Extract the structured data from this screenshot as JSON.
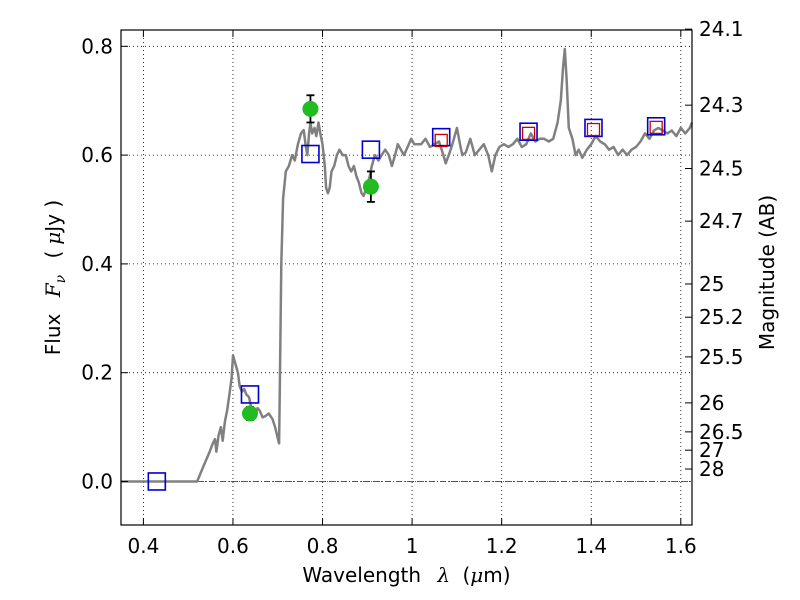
{
  "chart_data": {
    "type": "line",
    "title": "",
    "xlabel": {
      "prefix": "Wavelength",
      "symbol": "λ",
      "unit_open": "(",
      "unit_mu": "μ",
      "unit_rest": "m)"
    },
    "ylabel": {
      "prefix": "Flux",
      "symbol": "F",
      "subscript": "ν",
      "unit_open": "(",
      "unit_mu": "μ",
      "unit_rest": "Jy )"
    },
    "y2label": "Magnitude (AB)",
    "xlim": [
      0.35,
      1.625
    ],
    "ylim": [
      -0.08,
      0.83
    ],
    "grid": true,
    "x_ticks": [
      0.4,
      0.6,
      0.8,
      1.0,
      1.2,
      1.4,
      1.6
    ],
    "x_tick_labels": [
      "0.4",
      "0.6",
      "0.8",
      "1",
      "1.2",
      "1.4",
      "1.6"
    ],
    "y_ticks": [
      0.0,
      0.2,
      0.4,
      0.6,
      0.8
    ],
    "y_tick_labels": [
      "0.0",
      "0.2",
      "0.4",
      "0.6",
      "0.8"
    ],
    "mag_ticks": [
      {
        "label": "24.1",
        "flux": 0.8316
      },
      {
        "label": "24.3",
        "flux": 0.6918
      },
      {
        "label": "24.5",
        "flux": 0.5754
      },
      {
        "label": "24.7",
        "flux": 0.4786
      },
      {
        "label": "25",
        "flux": 0.3631
      },
      {
        "label": "25.2",
        "flux": 0.302
      },
      {
        "label": "25.5",
        "flux": 0.2291
      },
      {
        "label": "26",
        "flux": 0.1445
      },
      {
        "label": "26.5",
        "flux": 0.0912
      },
      {
        "label": "27",
        "flux": 0.0575
      },
      {
        "label": "28",
        "flux": 0.0229
      }
    ],
    "series": [
      {
        "type": "line",
        "color": "#808080",
        "points": [
          [
            0.35,
            0.0
          ],
          [
            0.52,
            0.0
          ],
          [
            0.535,
            0.03
          ],
          [
            0.548,
            0.055
          ],
          [
            0.555,
            0.07
          ],
          [
            0.56,
            0.078
          ],
          [
            0.563,
            0.055
          ],
          [
            0.568,
            0.085
          ],
          [
            0.573,
            0.1
          ],
          [
            0.577,
            0.075
          ],
          [
            0.582,
            0.11
          ],
          [
            0.587,
            0.13
          ],
          [
            0.592,
            0.16
          ],
          [
            0.597,
            0.19
          ],
          [
            0.6,
            0.232
          ],
          [
            0.606,
            0.215
          ],
          [
            0.611,
            0.2
          ],
          [
            0.615,
            0.175
          ],
          [
            0.62,
            0.165
          ],
          [
            0.625,
            0.17
          ],
          [
            0.63,
            0.16
          ],
          [
            0.636,
            0.155
          ],
          [
            0.642,
            0.13
          ],
          [
            0.648,
            0.12
          ],
          [
            0.655,
            0.135
          ],
          [
            0.66,
            0.13
          ],
          [
            0.666,
            0.118
          ],
          [
            0.672,
            0.12
          ],
          [
            0.68,
            0.125
          ],
          [
            0.688,
            0.115
          ],
          [
            0.694,
            0.1
          ],
          [
            0.7,
            0.08
          ],
          [
            0.703,
            0.07
          ],
          [
            0.705,
            0.2
          ],
          [
            0.708,
            0.4
          ],
          [
            0.712,
            0.52
          ],
          [
            0.718,
            0.57
          ],
          [
            0.725,
            0.58
          ],
          [
            0.732,
            0.6
          ],
          [
            0.738,
            0.59
          ],
          [
            0.745,
            0.62
          ],
          [
            0.752,
            0.64
          ],
          [
            0.758,
            0.646
          ],
          [
            0.762,
            0.62
          ],
          [
            0.766,
            0.6
          ],
          [
            0.77,
            0.64
          ],
          [
            0.773,
            0.66
          ],
          [
            0.777,
            0.64
          ],
          [
            0.782,
            0.65
          ],
          [
            0.786,
            0.635
          ],
          [
            0.791,
            0.66
          ],
          [
            0.795,
            0.64
          ],
          [
            0.8,
            0.62
          ],
          [
            0.805,
            0.58
          ],
          [
            0.808,
            0.54
          ],
          [
            0.812,
            0.53
          ],
          [
            0.816,
            0.54
          ],
          [
            0.82,
            0.57
          ],
          [
            0.826,
            0.58
          ],
          [
            0.832,
            0.6
          ],
          [
            0.838,
            0.61
          ],
          [
            0.845,
            0.6
          ],
          [
            0.852,
            0.6
          ],
          [
            0.858,
            0.58
          ],
          [
            0.864,
            0.57
          ],
          [
            0.87,
            0.58
          ],
          [
            0.876,
            0.56
          ],
          [
            0.881,
            0.55
          ],
          [
            0.887,
            0.53
          ],
          [
            0.892,
            0.525
          ],
          [
            0.898,
            0.54
          ],
          [
            0.905,
            0.56
          ],
          [
            0.91,
            0.58
          ],
          [
            0.917,
            0.6
          ],
          [
            0.925,
            0.59
          ],
          [
            0.932,
            0.6
          ],
          [
            0.94,
            0.61
          ],
          [
            0.948,
            0.6
          ],
          [
            0.955,
            0.58
          ],
          [
            0.962,
            0.6
          ],
          [
            0.968,
            0.62
          ],
          [
            0.975,
            0.61
          ],
          [
            0.982,
            0.6
          ],
          [
            0.99,
            0.615
          ],
          [
            0.998,
            0.63
          ],
          [
            1.005,
            0.62
          ],
          [
            1.012,
            0.62
          ],
          [
            1.02,
            0.62
          ],
          [
            1.03,
            0.63
          ],
          [
            1.04,
            0.615
          ],
          [
            1.05,
            0.62
          ],
          [
            1.06,
            0.625
          ],
          [
            1.07,
            0.6
          ],
          [
            1.075,
            0.585
          ],
          [
            1.082,
            0.6
          ],
          [
            1.09,
            0.62
          ],
          [
            1.1,
            0.65
          ],
          [
            1.107,
            0.62
          ],
          [
            1.112,
            0.6
          ],
          [
            1.12,
            0.605
          ],
          [
            1.13,
            0.63
          ],
          [
            1.14,
            0.6
          ],
          [
            1.15,
            0.61
          ],
          [
            1.16,
            0.62
          ],
          [
            1.17,
            0.6
          ],
          [
            1.178,
            0.57
          ],
          [
            1.186,
            0.6
          ],
          [
            1.195,
            0.615
          ],
          [
            1.205,
            0.62
          ],
          [
            1.215,
            0.615
          ],
          [
            1.225,
            0.62
          ],
          [
            1.235,
            0.63
          ],
          [
            1.245,
            0.615
          ],
          [
            1.255,
            0.62
          ],
          [
            1.265,
            0.64
          ],
          [
            1.275,
            0.625
          ],
          [
            1.285,
            0.63
          ],
          [
            1.295,
            0.63
          ],
          [
            1.305,
            0.625
          ],
          [
            1.315,
            0.63
          ],
          [
            1.325,
            0.66
          ],
          [
            1.332,
            0.7
          ],
          [
            1.337,
            0.76
          ],
          [
            1.341,
            0.795
          ],
          [
            1.345,
            0.74
          ],
          [
            1.35,
            0.65
          ],
          [
            1.358,
            0.63
          ],
          [
            1.365,
            0.6
          ],
          [
            1.372,
            0.61
          ],
          [
            1.38,
            0.595
          ],
          [
            1.39,
            0.61
          ],
          [
            1.4,
            0.62
          ],
          [
            1.41,
            0.635
          ],
          [
            1.42,
            0.625
          ],
          [
            1.43,
            0.62
          ],
          [
            1.44,
            0.61
          ],
          [
            1.45,
            0.615
          ],
          [
            1.46,
            0.6
          ],
          [
            1.47,
            0.61
          ],
          [
            1.48,
            0.6
          ],
          [
            1.49,
            0.61
          ],
          [
            1.5,
            0.615
          ],
          [
            1.51,
            0.625
          ],
          [
            1.52,
            0.64
          ],
          [
            1.53,
            0.63
          ],
          [
            1.54,
            0.645
          ],
          [
            1.55,
            0.65
          ],
          [
            1.56,
            0.645
          ],
          [
            1.57,
            0.64
          ],
          [
            1.58,
            0.645
          ],
          [
            1.59,
            0.635
          ],
          [
            1.6,
            0.65
          ],
          [
            1.61,
            0.64
          ],
          [
            1.62,
            0.65
          ],
          [
            1.625,
            0.66
          ]
        ]
      },
      {
        "type": "scatter",
        "marker": "circle",
        "color": "#22bb22",
        "points": [
          {
            "x": 0.638,
            "y": 0.125,
            "err": 0.012
          },
          {
            "x": 0.773,
            "y": 0.685,
            "err": 0.025
          },
          {
            "x": 0.908,
            "y": 0.542,
            "err": 0.028
          }
        ]
      },
      {
        "type": "scatter",
        "marker": "square-open",
        "color": "#0000cc",
        "points": [
          {
            "x": 0.43,
            "y": 0.0
          },
          {
            "x": 0.638,
            "y": 0.16
          },
          {
            "x": 0.773,
            "y": 0.602
          },
          {
            "x": 0.908,
            "y": 0.61
          },
          {
            "x": 1.065,
            "y": 0.633
          },
          {
            "x": 1.26,
            "y": 0.643
          },
          {
            "x": 1.405,
            "y": 0.65
          },
          {
            "x": 1.545,
            "y": 0.653
          }
        ]
      },
      {
        "type": "scatter",
        "marker": "square-open-small",
        "color": "#cc0000",
        "points": [
          {
            "x": 1.065,
            "y": 0.627
          },
          {
            "x": 1.26,
            "y": 0.64
          },
          {
            "x": 1.405,
            "y": 0.647
          },
          {
            "x": 1.545,
            "y": 0.651
          }
        ]
      }
    ]
  }
}
